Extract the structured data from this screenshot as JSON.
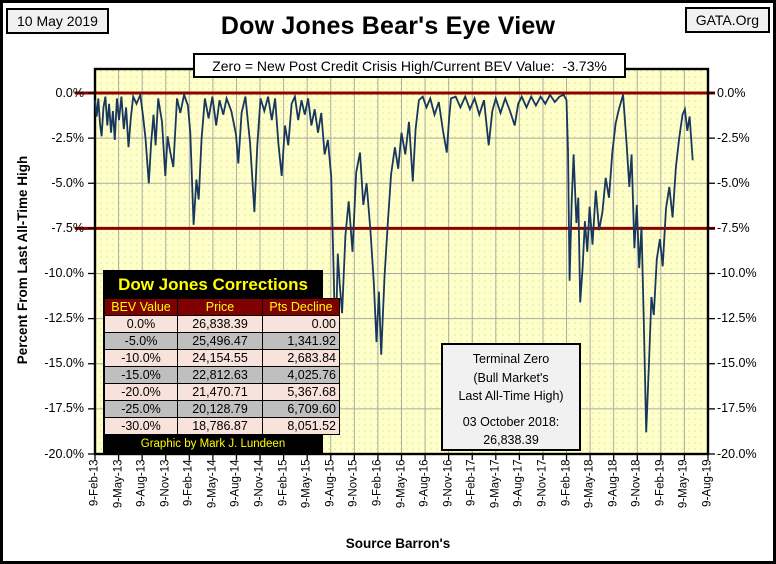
{
  "header": {
    "date_stamp": "10 May 2019",
    "org": "GATA.Org",
    "title": "Dow Jones Bear's Eye View",
    "subtitle": "Zero = New Post Credit Crisis High/Current BEV Value:  -3.73%"
  },
  "chart_data": {
    "type": "line",
    "title": "Dow Jones Bear's Eye View",
    "ylabel": "Percent From Last All-Time High",
    "source_label": "Source Barron's",
    "ylim": [
      -20,
      1.3
    ],
    "grid": true,
    "plot_bg_color": "#FFFFC9",
    "plot_dot_color": "#E3E3A4",
    "gridline_color": "#ABABA3",
    "y_ticks": [
      "0.0%",
      "-2.5%",
      "-5.0%",
      "-7.5%",
      "-10.0%",
      "-12.5%",
      "-15.0%",
      "-17.5%",
      "-20.0%"
    ],
    "x_ticks": [
      "9-Feb-13",
      "9-May-13",
      "9-Aug-13",
      "9-Nov-13",
      "9-Feb-14",
      "9-May-14",
      "9-Aug-14",
      "9-Nov-14",
      "9-Feb-15",
      "9-May-15",
      "9-Aug-15",
      "9-Nov-15",
      "9-Feb-16",
      "9-May-16",
      "9-Aug-16",
      "9-Nov-16",
      "9-Feb-17",
      "9-May-17",
      "9-Aug-17",
      "9-Nov-17",
      "9-Feb-18",
      "9-May-18",
      "9-Aug-18",
      "9-Nov-18",
      "9-Feb-19",
      "9-May-19",
      "9-Aug-19"
    ],
    "reference_lines": {
      "color": "#8F0000",
      "values": [
        0,
        -7.5
      ]
    },
    "current_bev_pct": -3.73,
    "series": [
      {
        "name": "Dow Jones BEV (% from last all-time high)",
        "color": "#17375E",
        "x_unit": "quarters since 9-Feb-13 (each x tick = 1 quarter)",
        "points": [
          [
            0.0,
            -0.4
          ],
          [
            0.07,
            -1.3
          ],
          [
            0.14,
            -0.3
          ],
          [
            0.21,
            -1.7
          ],
          [
            0.28,
            -2.4
          ],
          [
            0.36,
            -0.8
          ],
          [
            0.44,
            -0.2
          ],
          [
            0.52,
            -1.8
          ],
          [
            0.6,
            -0.6
          ],
          [
            0.68,
            -2.2
          ],
          [
            0.76,
            -1.0
          ],
          [
            0.84,
            -2.6
          ],
          [
            0.93,
            -0.3
          ],
          [
            1.02,
            -1.5
          ],
          [
            1.12,
            -0.2
          ],
          [
            1.22,
            -2.0
          ],
          [
            1.32,
            -0.8
          ],
          [
            1.42,
            -3.0
          ],
          [
            1.52,
            -1.4
          ],
          [
            1.62,
            -0.2
          ],
          [
            1.76,
            -0.6
          ],
          [
            1.92,
            -0.1
          ],
          [
            2.04,
            -1.3
          ],
          [
            2.14,
            -2.5
          ],
          [
            2.28,
            -5.0
          ],
          [
            2.38,
            -2.8
          ],
          [
            2.48,
            -1.2
          ],
          [
            2.57,
            -2.9
          ],
          [
            2.68,
            -0.3
          ],
          [
            2.84,
            -1.6
          ],
          [
            2.98,
            -4.6
          ],
          [
            3.08,
            -2.4
          ],
          [
            3.18,
            -3.2
          ],
          [
            3.32,
            -4.1
          ],
          [
            3.48,
            -0.3
          ],
          [
            3.62,
            -1.1
          ],
          [
            3.78,
            -0.1
          ],
          [
            3.94,
            -0.7
          ],
          [
            4.04,
            -2.2
          ],
          [
            4.18,
            -7.3
          ],
          [
            4.3,
            -4.8
          ],
          [
            4.4,
            -5.9
          ],
          [
            4.52,
            -2.5
          ],
          [
            4.66,
            -0.3
          ],
          [
            4.82,
            -1.4
          ],
          [
            4.98,
            -0.2
          ],
          [
            5.14,
            -1.8
          ],
          [
            5.28,
            -0.4
          ],
          [
            5.44,
            -1.2
          ],
          [
            5.58,
            -0.3
          ],
          [
            5.78,
            -1.0
          ],
          [
            5.98,
            -2.3
          ],
          [
            6.08,
            -3.9
          ],
          [
            6.22,
            -1.1
          ],
          [
            6.38,
            -0.2
          ],
          [
            6.58,
            -2.8
          ],
          [
            6.76,
            -6.6
          ],
          [
            6.88,
            -3.0
          ],
          [
            7.02,
            -0.3
          ],
          [
            7.18,
            -1.0
          ],
          [
            7.34,
            -0.2
          ],
          [
            7.5,
            -1.5
          ],
          [
            7.64,
            -0.3
          ],
          [
            7.78,
            -2.8
          ],
          [
            7.92,
            -4.6
          ],
          [
            8.06,
            -1.8
          ],
          [
            8.2,
            -2.9
          ],
          [
            8.34,
            -0.6
          ],
          [
            8.48,
            -0.2
          ],
          [
            8.62,
            -1.5
          ],
          [
            8.76,
            -0.4
          ],
          [
            8.9,
            -1.2
          ],
          [
            9.04,
            -0.3
          ],
          [
            9.18,
            -1.8
          ],
          [
            9.32,
            -0.9
          ],
          [
            9.46,
            -2.2
          ],
          [
            9.6,
            -1.1
          ],
          [
            9.74,
            -3.4
          ],
          [
            9.88,
            -2.6
          ],
          [
            10.02,
            -4.6
          ],
          [
            10.12,
            -9.8
          ],
          [
            10.2,
            -14.4
          ],
          [
            10.3,
            -8.9
          ],
          [
            10.38,
            -10.6
          ],
          [
            10.48,
            -12.2
          ],
          [
            10.62,
            -7.9
          ],
          [
            10.76,
            -6.0
          ],
          [
            10.92,
            -8.8
          ],
          [
            11.08,
            -4.4
          ],
          [
            11.24,
            -3.3
          ],
          [
            11.38,
            -6.2
          ],
          [
            11.52,
            -5.0
          ],
          [
            11.68,
            -7.6
          ],
          [
            11.82,
            -10.4
          ],
          [
            11.94,
            -13.8
          ],
          [
            12.04,
            -11.0
          ],
          [
            12.14,
            -14.5
          ],
          [
            12.28,
            -10.2
          ],
          [
            12.42,
            -7.2
          ],
          [
            12.56,
            -4.5
          ],
          [
            12.72,
            -3.0
          ],
          [
            12.86,
            -4.2
          ],
          [
            13.0,
            -2.2
          ],
          [
            13.16,
            -3.4
          ],
          [
            13.32,
            -1.6
          ],
          [
            13.48,
            -4.9
          ],
          [
            13.6,
            -2.0
          ],
          [
            13.74,
            -0.4
          ],
          [
            13.9,
            -0.2
          ],
          [
            14.06,
            -0.8
          ],
          [
            14.22,
            -0.3
          ],
          [
            14.4,
            -1.2
          ],
          [
            14.58,
            -0.5
          ],
          [
            14.76,
            -2.1
          ],
          [
            14.92,
            -3.3
          ],
          [
            15.02,
            -1.4
          ],
          [
            15.1,
            -0.3
          ],
          [
            15.3,
            -0.2
          ],
          [
            15.5,
            -0.8
          ],
          [
            15.7,
            -0.2
          ],
          [
            15.9,
            -0.9
          ],
          [
            16.1,
            -0.3
          ],
          [
            16.3,
            -1.2
          ],
          [
            16.5,
            -0.4
          ],
          [
            16.7,
            -2.9
          ],
          [
            16.85,
            -1.0
          ],
          [
            17.0,
            -0.3
          ],
          [
            17.2,
            -1.1
          ],
          [
            17.4,
            -0.3
          ],
          [
            17.6,
            -1.0
          ],
          [
            17.8,
            -1.8
          ],
          [
            17.95,
            -0.6
          ],
          [
            18.1,
            -0.2
          ],
          [
            18.3,
            -0.8
          ],
          [
            18.5,
            -0.2
          ],
          [
            18.7,
            -0.7
          ],
          [
            18.9,
            -0.2
          ],
          [
            19.1,
            -0.6
          ],
          [
            19.3,
            -0.1
          ],
          [
            19.5,
            -0.5
          ],
          [
            19.7,
            -0.2
          ],
          [
            19.88,
            -0.1
          ],
          [
            20.0,
            -0.4
          ],
          [
            20.06,
            -3.2
          ],
          [
            20.13,
            -10.4
          ],
          [
            20.22,
            -6.0
          ],
          [
            20.3,
            -3.4
          ],
          [
            20.42,
            -7.2
          ],
          [
            20.5,
            -5.8
          ],
          [
            20.58,
            -11.6
          ],
          [
            20.68,
            -9.7
          ],
          [
            20.78,
            -7.1
          ],
          [
            20.88,
            -8.8
          ],
          [
            20.98,
            -6.3
          ],
          [
            21.1,
            -8.4
          ],
          [
            21.24,
            -5.4
          ],
          [
            21.38,
            -7.6
          ],
          [
            21.52,
            -6.6
          ],
          [
            21.66,
            -4.7
          ],
          [
            21.8,
            -5.8
          ],
          [
            21.94,
            -3.3
          ],
          [
            22.08,
            -1.7
          ],
          [
            22.22,
            -0.9
          ],
          [
            22.4,
            -0.1
          ],
          [
            22.55,
            -2.9
          ],
          [
            22.66,
            -5.2
          ],
          [
            22.76,
            -3.4
          ],
          [
            22.88,
            -8.6
          ],
          [
            22.98,
            -6.2
          ],
          [
            23.08,
            -9.7
          ],
          [
            23.18,
            -7.4
          ],
          [
            23.28,
            -12.9
          ],
          [
            23.38,
            -18.8
          ],
          [
            23.5,
            -14.8
          ],
          [
            23.6,
            -11.3
          ],
          [
            23.7,
            -12.3
          ],
          [
            23.83,
            -9.2
          ],
          [
            23.96,
            -8.1
          ],
          [
            24.08,
            -9.6
          ],
          [
            24.22,
            -6.4
          ],
          [
            24.36,
            -5.2
          ],
          [
            24.5,
            -6.9
          ],
          [
            24.64,
            -4.1
          ],
          [
            24.78,
            -2.5
          ],
          [
            24.92,
            -1.2
          ],
          [
            25.02,
            -0.9
          ],
          [
            25.12,
            -2.1
          ],
          [
            25.22,
            -1.3
          ],
          [
            25.35,
            -3.73
          ]
        ]
      }
    ]
  },
  "corrections_table": {
    "title": "Dow Jones Corrections",
    "columns": [
      "BEV Value",
      "Price",
      "Pts Decline"
    ],
    "rows": [
      [
        "0.0%",
        "26,838.39",
        "0.00"
      ],
      [
        "-5.0%",
        "25,496.47",
        "1,341.92"
      ],
      [
        "-10.0%",
        "24,154.55",
        "2,683.84"
      ],
      [
        "-15.0%",
        "22,812.63",
        "4,025.76"
      ],
      [
        "-20.0%",
        "21,470.71",
        "5,367.68"
      ],
      [
        "-25.0%",
        "20,128.79",
        "6,709.60"
      ],
      [
        "-30.0%",
        "18,786.87",
        "8,051.52"
      ]
    ],
    "footer": "Graphic by Mark J. Lundeen"
  },
  "terminal_zero_box": {
    "lines": [
      "Terminal Zero",
      "(Bull Market's",
      "Last All-Time High)"
    ],
    "date_line": "03 October 2018:",
    "value_line": "26,838.39"
  },
  "colors": {
    "series_line": "#17375E",
    "reference_red": "#8F0000",
    "plot_background": "#FFFFC9",
    "table_title_bg": "#000000",
    "table_header_bg": "#7F0000",
    "table_accent_text": "#FFFF00",
    "table_row_pink": "#F8E2DC",
    "table_row_gray": "#BFBFBF",
    "corner_box_bg": "#F1F1F1"
  }
}
